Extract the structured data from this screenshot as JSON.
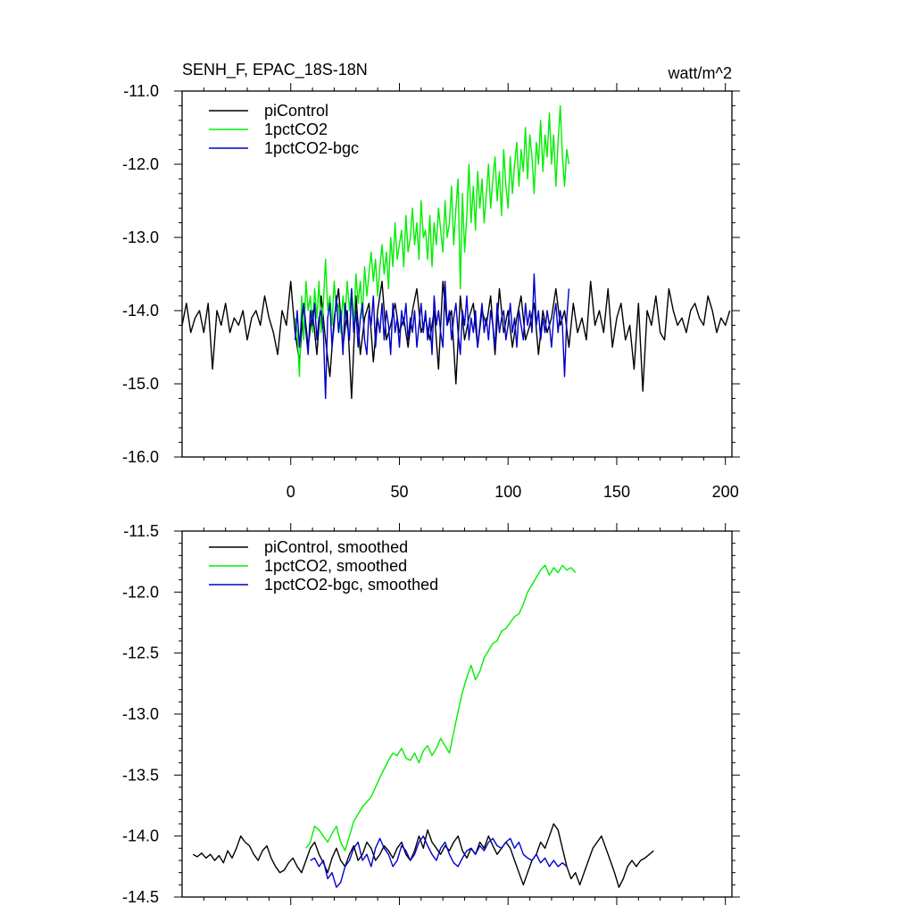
{
  "chart_data": [
    {
      "type": "line",
      "title": "SENH_F, EPAC_18S-18N",
      "units": "watt/m^2",
      "xlabel": "",
      "ylabel": "",
      "xlim": [
        -50,
        203
      ],
      "ylim": [
        -16.0,
        -11.0
      ],
      "xticks": [
        0,
        50,
        100,
        150,
        200
      ],
      "xtick_labels": [
        "0",
        "50",
        "100",
        "150",
        "200"
      ],
      "yticks": [
        -16.0,
        -15.0,
        -14.0,
        -13.0,
        -12.0,
        -11.0
      ],
      "ytick_labels": [
        "-16.0",
        "-15.0",
        "-14.0",
        "-13.0",
        "-12.0",
        "-11.0"
      ],
      "legend_position": "top-left",
      "series": [
        {
          "name": "piControl",
          "color": "#000000",
          "x_start": -50,
          "x_step": 2,
          "values": [
            -14.2,
            -13.9,
            -14.3,
            -14.1,
            -14.0,
            -14.3,
            -13.9,
            -14.8,
            -14.0,
            -14.2,
            -13.9,
            -14.3,
            -14.1,
            -14.2,
            -14.0,
            -14.4,
            -14.1,
            -14.0,
            -14.2,
            -13.8,
            -14.1,
            -14.3,
            -14.6,
            -14.0,
            -14.2,
            -13.6,
            -14.3,
            -14.7,
            -13.9,
            -14.5,
            -14.0,
            -14.6,
            -13.8,
            -14.4,
            -14.9,
            -14.1,
            -13.7,
            -14.5,
            -14.0,
            -15.2,
            -13.8,
            -14.6,
            -14.1,
            -13.9,
            -14.7,
            -14.0,
            -13.6,
            -14.4,
            -14.2,
            -13.9,
            -14.3,
            -14.1,
            -14.5,
            -14.0,
            -13.7,
            -14.3,
            -14.1,
            -14.4,
            -14.0,
            -14.8,
            -13.6,
            -14.2,
            -14.0,
            -15.0,
            -13.8,
            -14.4,
            -14.1,
            -13.9,
            -14.5,
            -14.0,
            -14.2,
            -13.8,
            -14.6,
            -13.7,
            -14.3,
            -14.0,
            -14.5,
            -14.1,
            -13.8,
            -14.4,
            -14.2,
            -13.9,
            -14.6,
            -14.0,
            -14.3,
            -14.1,
            -13.7,
            -14.2,
            -14.0,
            -14.5,
            -13.9,
            -14.3,
            -14.1,
            -14.4,
            -13.6,
            -14.2,
            -14.0,
            -14.3,
            -13.7,
            -14.5,
            -14.1,
            -13.9,
            -14.4,
            -14.2,
            -14.8,
            -13.9,
            -15.1,
            -14.0,
            -14.2,
            -13.8,
            -14.3,
            -14.4,
            -13.7,
            -14.0,
            -14.2,
            -14.1,
            -14.3,
            -14.0,
            -13.9,
            -14.1,
            -14.2,
            -13.8,
            -14.0,
            -14.3,
            -14.1,
            -14.2,
            -14.0
          ]
        },
        {
          "name": "1pctCO2",
          "color": "#00ee00",
          "x_start": 2,
          "x_step": 1,
          "values": [
            -14.1,
            -14.3,
            -14.9,
            -13.8,
            -14.4,
            -13.6,
            -14.0,
            -13.8,
            -14.3,
            -13.7,
            -14.1,
            -13.6,
            -14.3,
            -13.9,
            -13.3,
            -14.0,
            -13.8,
            -14.2,
            -13.6,
            -14.0,
            -13.9,
            -14.3,
            -13.8,
            -14.1,
            -13.6,
            -14.0,
            -13.7,
            -14.2,
            -13.5,
            -13.9,
            -13.6,
            -14.1,
            -13.4,
            -13.8,
            -13.5,
            -13.2,
            -13.6,
            -13.3,
            -13.8,
            -13.4,
            -13.1,
            -13.5,
            -13.2,
            -13.7,
            -13.0,
            -13.4,
            -12.8,
            -13.3,
            -13.1,
            -12.9,
            -13.4,
            -12.7,
            -13.2,
            -13.0,
            -12.6,
            -13.1,
            -12.8,
            -13.3,
            -12.5,
            -13.0,
            -12.9,
            -13.3,
            -12.7,
            -13.4,
            -12.8,
            -13.1,
            -12.6,
            -12.9,
            -13.2,
            -12.5,
            -13.0,
            -12.8,
            -12.3,
            -13.1,
            -12.6,
            -12.2,
            -13.7,
            -12.4,
            -13.2,
            -12.7,
            -12.0,
            -12.8,
            -12.3,
            -12.9,
            -12.1,
            -12.6,
            -12.2,
            -12.8,
            -12.4,
            -12.0,
            -12.6,
            -12.2,
            -11.9,
            -12.5,
            -12.1,
            -12.7,
            -11.8,
            -12.3,
            -12.6,
            -11.9,
            -12.4,
            -12.0,
            -11.7,
            -12.3,
            -11.8,
            -12.1,
            -11.5,
            -12.2,
            -11.6,
            -11.9,
            -12.4,
            -11.7,
            -12.0,
            -11.4,
            -12.1,
            -11.6,
            -11.9,
            -11.3,
            -12.0,
            -11.6,
            -12.3,
            -11.7,
            -11.2,
            -11.9,
            -12.3,
            -11.8,
            -12.0
          ]
        },
        {
          "name": "1pctCO2-bgc",
          "color": "#0000cc",
          "x_start": 2,
          "x_step": 1,
          "values": [
            -14.4,
            -14.0,
            -14.5,
            -14.1,
            -13.9,
            -14.3,
            -14.6,
            -14.0,
            -14.2,
            -13.9,
            -14.4,
            -14.1,
            -14.0,
            -14.3,
            -15.2,
            -14.1,
            -13.9,
            -14.5,
            -14.2,
            -13.8,
            -14.3,
            -14.0,
            -14.6,
            -13.9,
            -14.2,
            -14.4,
            -13.7,
            -14.3,
            -14.0,
            -14.5,
            -14.1,
            -13.9,
            -14.4,
            -14.6,
            -14.0,
            -14.2,
            -13.8,
            -14.5,
            -14.1,
            -14.3,
            -13.9,
            -14.4,
            -14.0,
            -14.2,
            -14.6,
            -13.9,
            -14.3,
            -14.1,
            -14.5,
            -14.0,
            -14.2,
            -13.9,
            -14.4,
            -14.1,
            -14.3,
            -14.0,
            -14.5,
            -14.2,
            -13.9,
            -14.3,
            -14.0,
            -14.4,
            -14.1,
            -14.6,
            -13.8,
            -14.2,
            -14.0,
            -14.3,
            -14.5,
            -13.6,
            -14.2,
            -14.0,
            -14.4,
            -14.1,
            -13.9,
            -14.3,
            -14.6,
            -14.0,
            -14.2,
            -13.8,
            -14.4,
            -14.1,
            -14.3,
            -14.0,
            -14.5,
            -14.2,
            -13.9,
            -14.3,
            -14.1,
            -14.4,
            -14.0,
            -14.2,
            -14.5,
            -13.9,
            -14.3,
            -14.1,
            -14.0,
            -14.4,
            -14.2,
            -13.9,
            -14.3,
            -14.1,
            -14.5,
            -14.0,
            -14.2,
            -14.4,
            -13.9,
            -14.2,
            -14.0,
            -14.3,
            -13.5,
            -14.2,
            -14.0,
            -14.4,
            -14.1,
            -14.3,
            -14.0,
            -14.2,
            -14.5,
            -14.1,
            -13.9,
            -14.3,
            -14.0,
            -14.2,
            -14.9,
            -14.1,
            -13.7
          ]
        }
      ]
    },
    {
      "type": "line",
      "title": "",
      "xlabel": "",
      "ylabel": "",
      "xlim": [
        -50,
        203
      ],
      "ylim": [
        -14.5,
        -11.5
      ],
      "xticks": [
        0,
        50,
        100,
        150,
        200
      ],
      "yticks": [
        -14.5,
        -14.0,
        -13.5,
        -13.0,
        -12.5,
        -12.0,
        -11.5
      ],
      "ytick_labels": [
        "-14.5",
        "-14.0",
        "-13.5",
        "-13.0",
        "-12.5",
        "-12.0",
        "-11.5"
      ],
      "legend_position": "top-left",
      "series": [
        {
          "name": "piControl, smoothed",
          "color": "#000000",
          "x_start": -45,
          "x_step": 2,
          "values": [
            -14.15,
            -14.17,
            -14.14,
            -14.18,
            -14.15,
            -14.2,
            -14.16,
            -14.22,
            -14.12,
            -14.18,
            -14.1,
            -14.0,
            -14.05,
            -14.08,
            -14.15,
            -14.2,
            -14.12,
            -14.08,
            -14.18,
            -14.25,
            -14.3,
            -14.28,
            -14.22,
            -14.18,
            -14.25,
            -14.3,
            -14.2,
            -14.1,
            -14.05,
            -14.15,
            -14.22,
            -14.3,
            -14.18,
            -14.1,
            -14.2,
            -14.25,
            -14.15,
            -14.08,
            -14.2,
            -14.15,
            -14.05,
            -14.1,
            -14.2,
            -14.15,
            -14.08,
            -14.12,
            -14.18,
            -14.1,
            -14.05,
            -14.15,
            -14.2,
            -14.12,
            -14.0,
            -14.1,
            -13.95,
            -14.05,
            -14.1,
            -14.15,
            -14.08,
            -14.12,
            -14.05,
            -14.0,
            -14.12,
            -14.18,
            -14.1,
            -14.15,
            -14.05,
            -14.1,
            -14.0,
            -14.08,
            -14.15,
            -14.1,
            -14.05,
            -14.1,
            -14.2,
            -14.3,
            -14.4,
            -14.3,
            -14.2,
            -14.15,
            -14.05,
            -14.1,
            -14.0,
            -13.9,
            -13.95,
            -14.1,
            -14.25,
            -14.35,
            -14.3,
            -14.4,
            -14.3,
            -14.2,
            -14.1,
            -14.05,
            -14.0,
            -14.1,
            -14.2,
            -14.3,
            -14.42,
            -14.35,
            -14.25,
            -14.2,
            -14.25,
            -14.2,
            -14.18,
            -14.15,
            -14.12
          ]
        },
        {
          "name": "1pctCO2, smoothed",
          "color": "#00ee00",
          "x_start": 7,
          "x_step": 2,
          "values": [
            -14.1,
            -14.05,
            -13.92,
            -13.95,
            -14.0,
            -14.05,
            -13.98,
            -13.92,
            -14.05,
            -14.12,
            -14.0,
            -13.88,
            -13.82,
            -13.76,
            -13.72,
            -13.68,
            -13.6,
            -13.52,
            -13.45,
            -13.38,
            -13.32,
            -13.34,
            -13.28,
            -13.36,
            -13.38,
            -13.32,
            -13.4,
            -13.3,
            -13.26,
            -13.34,
            -13.28,
            -13.2,
            -13.26,
            -13.32,
            -13.15,
            -12.98,
            -12.82,
            -12.7,
            -12.6,
            -12.72,
            -12.65,
            -12.54,
            -12.48,
            -12.42,
            -12.4,
            -12.32,
            -12.3,
            -12.25,
            -12.2,
            -12.18,
            -12.1,
            -12.0,
            -11.94,
            -11.88,
            -11.82,
            -11.78,
            -11.86,
            -11.8,
            -11.84,
            -11.78,
            -11.82,
            -11.8,
            -11.84
          ]
        },
        {
          "name": "1pctCO2-bgc, smoothed",
          "color": "#0000cc",
          "x_start": 9,
          "x_step": 2,
          "values": [
            -14.2,
            -14.18,
            -14.25,
            -14.2,
            -14.35,
            -14.3,
            -14.42,
            -14.38,
            -14.25,
            -14.2,
            -14.1,
            -14.05,
            -14.2,
            -14.15,
            -14.25,
            -14.1,
            -14.02,
            -14.1,
            -14.15,
            -14.25,
            -14.2,
            -14.08,
            -14.12,
            -14.2,
            -14.15,
            -14.05,
            -14.0,
            -14.08,
            -14.15,
            -14.2,
            -14.1,
            -14.05,
            -14.15,
            -14.22,
            -14.25,
            -14.18,
            -14.12,
            -14.1,
            -14.15,
            -14.08,
            -14.12,
            -14.05,
            -14.02,
            -14.08,
            -14.1,
            -14.05,
            -14.02,
            -14.1,
            -14.05,
            -14.15,
            -14.18,
            -14.2,
            -14.15,
            -14.22,
            -14.18,
            -14.25,
            -14.2,
            -14.25,
            -14.22,
            -14.25
          ]
        }
      ]
    }
  ]
}
